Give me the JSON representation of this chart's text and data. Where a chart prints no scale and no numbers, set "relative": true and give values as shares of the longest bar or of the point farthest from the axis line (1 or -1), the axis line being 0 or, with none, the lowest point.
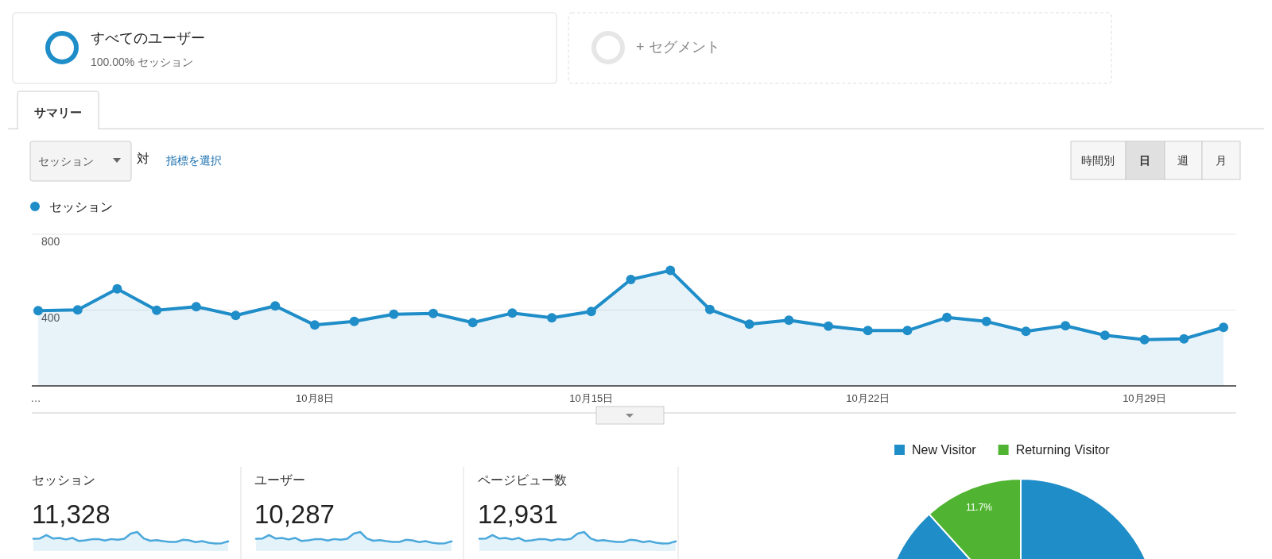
{
  "chart_data": [
    {
      "type": "other",
      "annotations": [
        "すべてのユーザー",
        "100.00% セッション",
        "+ セグメント",
        "サマリー",
        "セッション",
        "対",
        "指標を選択",
        "時間別",
        "日",
        "週",
        "月"
      ]
    },
    {
      "type": "area",
      "categories": [
        "…",
        null,
        null,
        null,
        null,
        null,
        null,
        "10月8日",
        null,
        null,
        null,
        null,
        null,
        null,
        "10月15日",
        null,
        null,
        null,
        null,
        null,
        null,
        "10月22日",
        null,
        null,
        null,
        null,
        null,
        null,
        "10月29日",
        null,
        null
      ],
      "series": [
        {
          "name": "セッション",
          "color": "#1f8dc8",
          "values": [
            397,
            401,
            512,
            399,
            418,
            372,
            422,
            321,
            340,
            378,
            382,
            334,
            384,
            359,
            393,
            561,
            609,
            403,
            326,
            347,
            315,
            292,
            292,
            361,
            340,
            288,
            317,
            267,
            244,
            248,
            309
          ]
        }
      ],
      "ylim": [
        0,
        800
      ],
      "yticks": [
        400,
        800
      ],
      "grid": "y",
      "marker": "circle",
      "legend": "top left"
    },
    {
      "type": "area",
      "title": "セッション",
      "subtitle": "11,328",
      "relative": true,
      "series": [
        {
          "color": "#4aa8db",
          "values": [
            0.65,
            0.66,
            0.84,
            0.66,
            0.69,
            0.61,
            0.69,
            0.53,
            0.56,
            0.62,
            0.63,
            0.55,
            0.63,
            0.59,
            0.65,
            0.92,
            1,
            0.66,
            0.54,
            0.57,
            0.52,
            0.48,
            0.48,
            0.59,
            0.56,
            0.47,
            0.52,
            0.44,
            0.4,
            0.41,
            0.51
          ]
        }
      ]
    },
    {
      "type": "area",
      "title": "ユーザー",
      "subtitle": "10,287",
      "relative": true,
      "series": [
        {
          "color": "#4aa8db",
          "values": [
            0.65,
            0.66,
            0.84,
            0.66,
            0.69,
            0.61,
            0.69,
            0.53,
            0.56,
            0.62,
            0.63,
            0.55,
            0.63,
            0.59,
            0.65,
            0.92,
            1,
            0.66,
            0.54,
            0.57,
            0.52,
            0.48,
            0.48,
            0.59,
            0.56,
            0.47,
            0.52,
            0.44,
            0.4,
            0.41,
            0.51
          ]
        }
      ]
    },
    {
      "type": "area",
      "title": "ページビュー数",
      "subtitle": "12,931",
      "relative": true,
      "series": [
        {
          "color": "#4aa8db",
          "values": [
            0.65,
            0.66,
            0.84,
            0.66,
            0.69,
            0.61,
            0.69,
            0.53,
            0.56,
            0.62,
            0.63,
            0.55,
            0.63,
            0.59,
            0.65,
            0.92,
            1,
            0.66,
            0.54,
            0.57,
            0.52,
            0.48,
            0.48,
            0.59,
            0.56,
            0.47,
            0.52,
            0.44,
            0.4,
            0.41,
            0.51
          ]
        }
      ]
    },
    {
      "type": "pie",
      "categories": [
        "New Visitor",
        "Returning Visitor"
      ],
      "values": [
        88.3,
        11.7
      ],
      "colors": [
        "#1f8dc8",
        "#50b432"
      ],
      "value_labels": [
        null,
        "11.7%"
      ],
      "legend": "top"
    }
  ]
}
